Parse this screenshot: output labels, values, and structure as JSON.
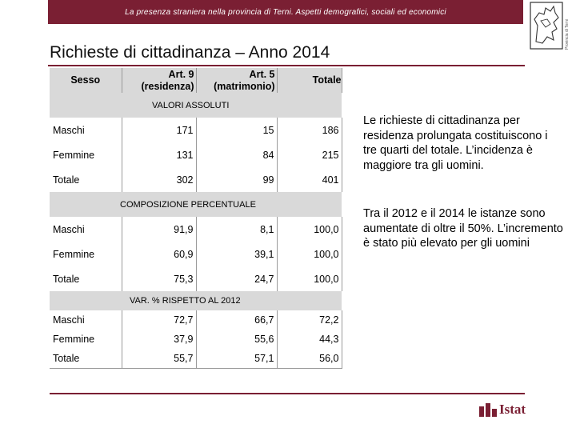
{
  "header": {
    "text": "La presenza straniera nella provincia di Terni. Aspetti demografici, sociali ed economici",
    "crest_caption": "Provincia di Terni"
  },
  "title": "Richieste di cittadinanza – Anno 2014",
  "table": {
    "columns": {
      "sesso": "Sesso",
      "art9": [
        "Art. 9",
        "(residenza)"
      ],
      "art5": [
        "Art. 5",
        "(matrimonio)"
      ],
      "totale": "Totale"
    },
    "sections": [
      {
        "title": "VALORI ASSOLUTI",
        "rows": [
          {
            "label": "Maschi",
            "art9": "171",
            "art5": "15",
            "totale": "186"
          },
          {
            "label": "Femmine",
            "art9": "131",
            "art5": "84",
            "totale": "215"
          },
          {
            "label": "Totale",
            "art9": "302",
            "art5": "99",
            "totale": "401"
          }
        ]
      },
      {
        "title": "COMPOSIZIONE PERCENTUALE",
        "rows": [
          {
            "label": "Maschi",
            "art9": "91,9",
            "art5": "8,1",
            "totale": "100,0"
          },
          {
            "label": "Femmine",
            "art9": "60,9",
            "art5": "39,1",
            "totale": "100,0"
          },
          {
            "label": "Totale",
            "art9": "75,3",
            "art5": "24,7",
            "totale": "100,0"
          }
        ]
      },
      {
        "title": "VAR. % RISPETTO AL  2012",
        "rows": [
          {
            "label": "Maschi",
            "art9": "72,7",
            "art5": "66,7",
            "totale": "72,2"
          },
          {
            "label": "Femmine",
            "art9": "37,9",
            "art5": "55,6",
            "totale": "44,3"
          },
          {
            "label": "Totale",
            "art9": "55,7",
            "art5": "57,1",
            "totale": "56,0"
          }
        ]
      }
    ]
  },
  "notes": [
    "Le richieste di cittadinanza per residenza prolungata costituiscono i tre quarti del totale. L’incidenza è maggiore tra gli uomini.",
    "Tra il 2012 e il 2014 le istanze sono aumentate di oltre il 50%. L’incremento è stato più elevato per gli uomini"
  ],
  "footer": {
    "logo_text": "Istat",
    "logo_icon": "istat-logo-icon"
  },
  "colors": {
    "brand": "#7a1f33",
    "table_header_bg": "#d9d9d9"
  }
}
